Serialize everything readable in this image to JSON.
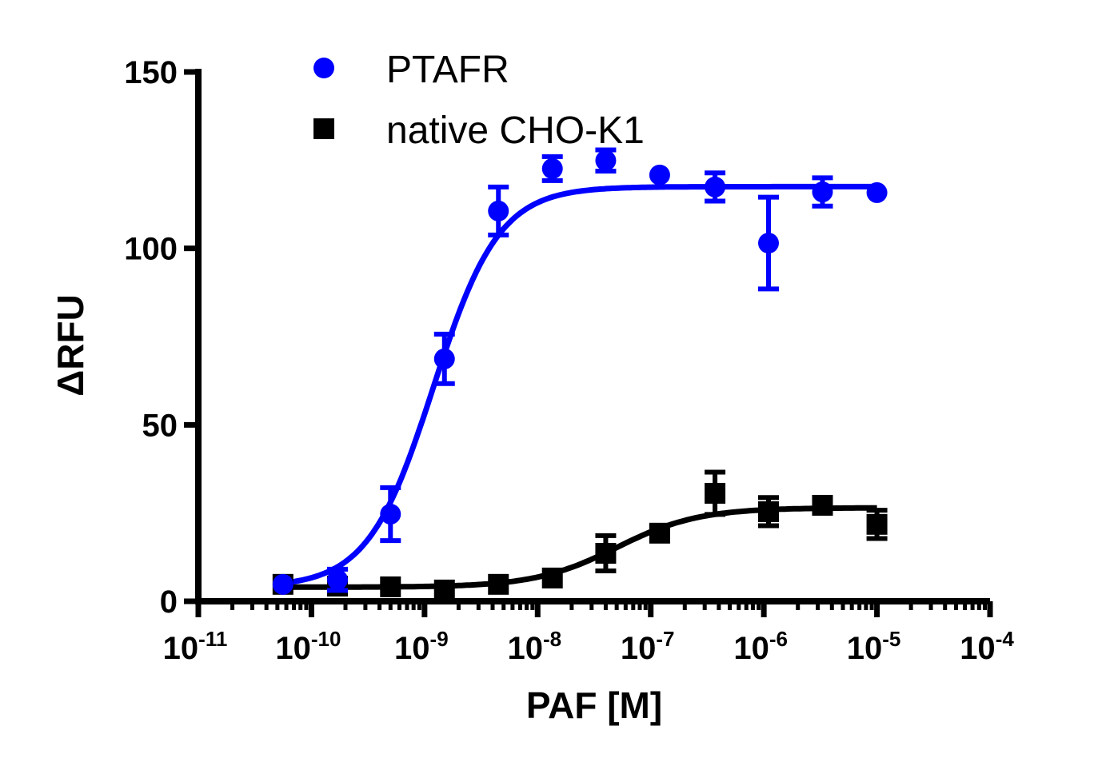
{
  "chart_data": {
    "type": "scatter",
    "title": "",
    "xlabel": "PAF [M]",
    "ylabel": "ΔRFU",
    "xscale": "log",
    "xlim": [
      1e-11,
      0.0001
    ],
    "ylim": [
      0,
      150
    ],
    "yticks": [
      0,
      50,
      100,
      150
    ],
    "ytick_labels": [
      "0",
      "50",
      "100",
      "150"
    ],
    "xtick_exponents": [
      "-11",
      "-10",
      "-9",
      "-8",
      "-7",
      "-6",
      "-5",
      "-4"
    ],
    "xtick_base": "10",
    "grid": false,
    "legend_position": "top-left",
    "series": [
      {
        "name": "PTAFR",
        "color": "#0000ff",
        "marker": "circle",
        "x": [
          5.6e-11,
          1.7e-10,
          5e-10,
          1.5e-09,
          4.5e-09,
          1.35e-08,
          4e-08,
          1.2e-07,
          3.7e-07,
          1.1e-06,
          3.3e-06,
          1e-05
        ],
        "y": [
          4.8,
          6.1,
          24.7,
          68.7,
          110.6,
          122.6,
          124.9,
          120.8,
          117.4,
          101.5,
          116,
          115.8
        ],
        "error": [
          0,
          3,
          7.5,
          7,
          6.8,
          3.4,
          3,
          0,
          4,
          13,
          4,
          0
        ],
        "fit": {
          "bottom": 4,
          "top": 117.5,
          "ec50": 1.2e-09,
          "hill": 1.5
        }
      },
      {
        "name": "native CHO-K1",
        "color": "#000000",
        "marker": "square",
        "x": [
          5.6e-11,
          1.7e-10,
          5e-10,
          1.5e-09,
          4.5e-09,
          1.35e-08,
          4e-08,
          1.2e-07,
          3.7e-07,
          1.1e-06,
          3.3e-06,
          1e-05
        ],
        "y": [
          4.8,
          4.3,
          4.1,
          3.2,
          4.8,
          6.6,
          13.6,
          19.3,
          30.6,
          25.4,
          27.2,
          21.8
        ],
        "error": [
          0,
          0,
          0,
          0,
          0,
          0,
          5,
          2,
          6,
          4,
          2,
          4
        ],
        "fit": {
          "bottom": 4,
          "top": 26.5,
          "ec50": 5e-08,
          "hill": 1.2
        }
      }
    ]
  }
}
